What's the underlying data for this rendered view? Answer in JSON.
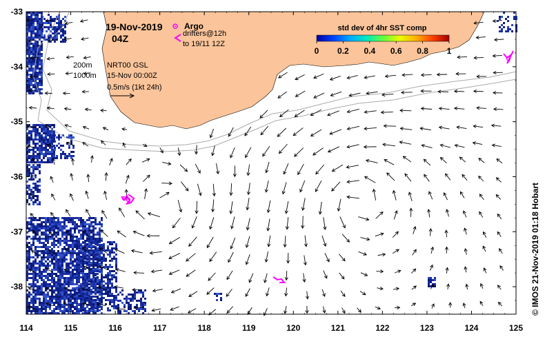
{
  "header": {
    "date": "19-Nov-2019",
    "hour": "04Z"
  },
  "legend": {
    "argo_label": "Argo",
    "drifters_label": "drifters@12h",
    "drifters_period": "to 19/11 12Z",
    "isobath_200": "200m",
    "isobath_1000": "1000m",
    "current_source": "NRT00 GSL",
    "current_time": "15-Nov 00:00Z",
    "scale_label": "0.5m/s (1kt 24h)"
  },
  "colorbar": {
    "title": "std dev of 4hr SST comp",
    "ticks": [
      "0",
      "0.2",
      "0.4",
      "0.6",
      "0.8",
      "1"
    ],
    "stops": [
      "#0000a0",
      "#0040ff",
      "#00a8ff",
      "#00e8c0",
      "#60ff40",
      "#e8ff00",
      "#ffb000",
      "#ff4000",
      "#a00000"
    ]
  },
  "axes": {
    "x_ticks": [
      "114",
      "115",
      "116",
      "117",
      "118",
      "119",
      "120",
      "121",
      "122",
      "123",
      "124",
      "125"
    ],
    "y_ticks": [
      "-33",
      "-34",
      "-35",
      "-36",
      "-37",
      "-38"
    ],
    "lon_range": [
      114,
      125
    ],
    "lat_range": [
      -38.5,
      -33
    ]
  },
  "credit": "© IMOS 21-Nov-2019 01:18 Hobart",
  "colors": {
    "land": "#fbc49a",
    "ocean": "#ffffff",
    "argo": "#ff00ff",
    "drifter": "#ff00ff",
    "isobath": "#aaaaaa",
    "cloud_sst": "#1a2a9a"
  }
}
